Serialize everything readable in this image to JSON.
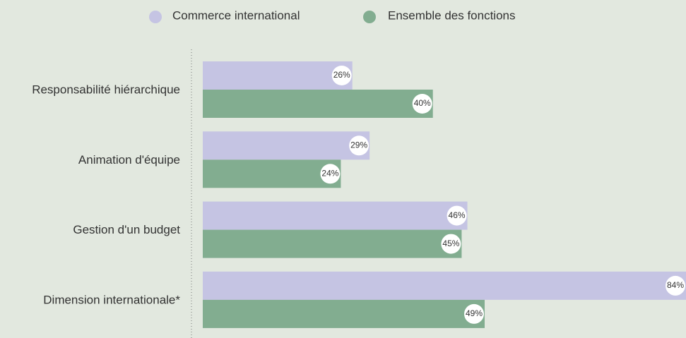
{
  "chart_data": {
    "type": "bar",
    "orientation": "horizontal",
    "categories": [
      "Responsabilité hiérarchique",
      "Animation d'équipe",
      "Gestion d'un budget",
      "Dimension internationale*"
    ],
    "series": [
      {
        "name": "Commerce international",
        "color": "#c5c4e3",
        "values": [
          26,
          29,
          46,
          84
        ],
        "value_labels": [
          "26%",
          "29%",
          "46%",
          "84%"
        ]
      },
      {
        "name": "Ensemble des fonctions",
        "color": "#82ad90",
        "values": [
          40,
          24,
          45,
          49
        ],
        "value_labels": [
          "40%",
          "24%",
          "45%",
          "49%"
        ]
      }
    ]
  }
}
